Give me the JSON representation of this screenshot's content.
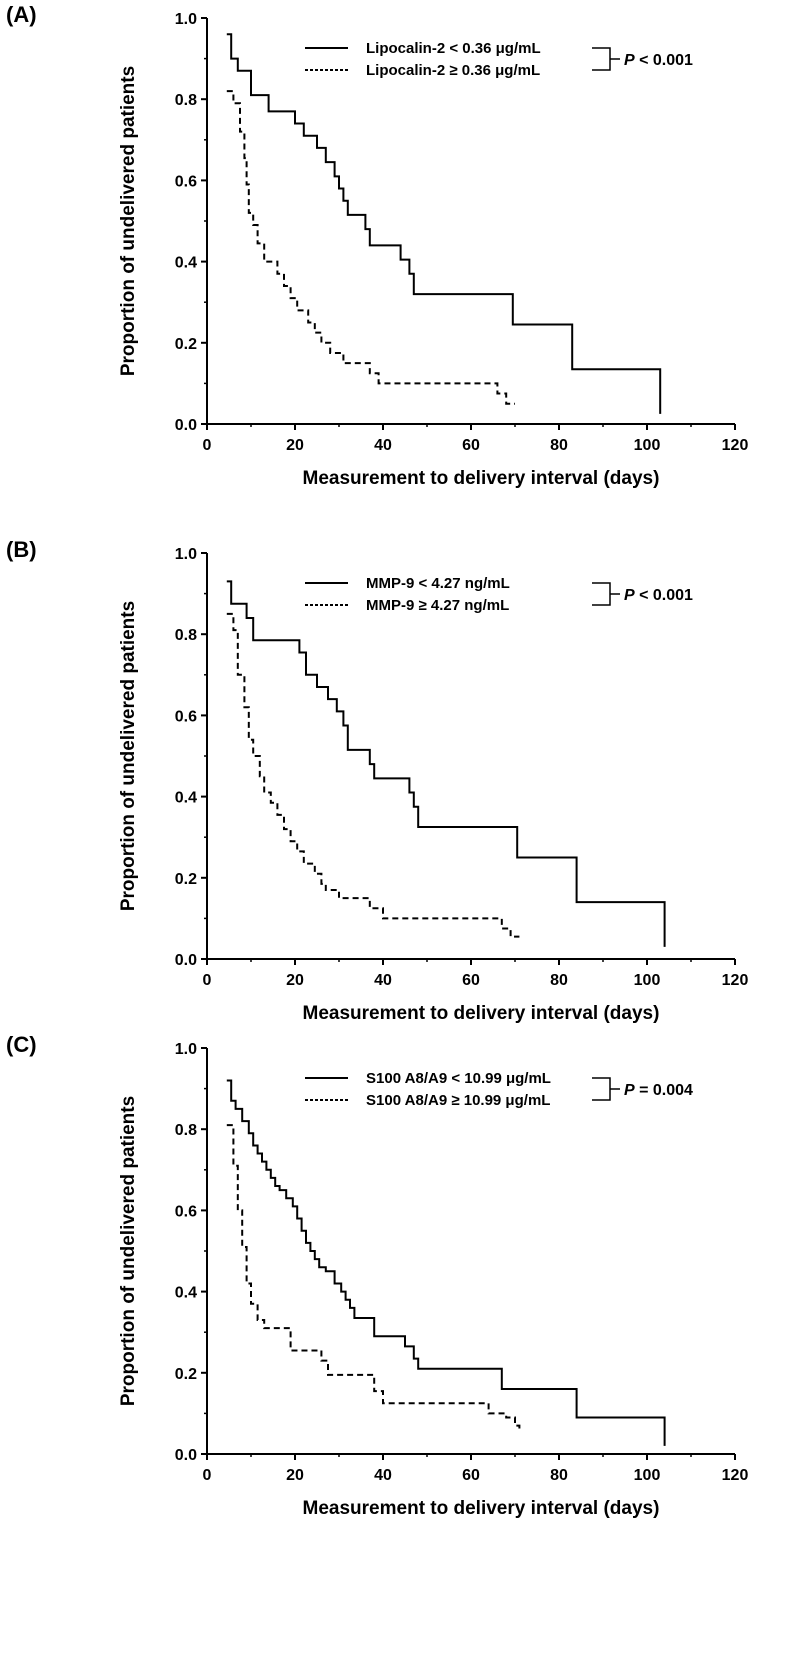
{
  "chart_data": [
    {
      "type": "line",
      "subtype": "kaplan-meier step",
      "panel_label": "(A)",
      "xlabel": "Measurement  to delivery interval (days)",
      "ylabel": "Proportion of undelivered patients",
      "xlim": [
        0,
        120
      ],
      "ylim": [
        0,
        1.0
      ],
      "xticks": [
        "0",
        "20",
        "40",
        "60",
        "80",
        "100",
        "120"
      ],
      "yticks": [
        "0.0",
        "0.2",
        "0.4",
        "0.6",
        "0.8",
        "1.0"
      ],
      "grid": false,
      "legend_position": "top-right",
      "p_label": "P",
      "p_text": " < 0.001",
      "series": [
        {
          "name": "Lipocalin-2 < 0.36 μg/mL",
          "style": "solid",
          "x": [
            4.5,
            5.5,
            7,
            10,
            14,
            20,
            22,
            25,
            27,
            29,
            30,
            31,
            32,
            36,
            37,
            38,
            44,
            46,
            47,
            69.5,
            83,
            103
          ],
          "y": [
            0.96,
            0.9,
            0.87,
            0.81,
            0.77,
            0.74,
            0.71,
            0.68,
            0.645,
            0.61,
            0.58,
            0.55,
            0.515,
            0.48,
            0.44,
            0.44,
            0.405,
            0.37,
            0.32,
            0.245,
            0.135,
            0.025
          ]
        },
        {
          "name": "Lipocalin-2 ≥ 0.36 μg/mL",
          "style": "dashed",
          "x": [
            4.5,
            6,
            7.5,
            8.5,
            9,
            9.5,
            10.5,
            11.5,
            13,
            16,
            17.5,
            19,
            20.5,
            23,
            24.5,
            26,
            28,
            31,
            37,
            39,
            63,
            66,
            68,
            70
          ],
          "y": [
            0.82,
            0.79,
            0.72,
            0.655,
            0.59,
            0.52,
            0.49,
            0.445,
            0.4,
            0.37,
            0.34,
            0.31,
            0.28,
            0.25,
            0.225,
            0.2,
            0.175,
            0.15,
            0.125,
            0.1,
            0.1,
            0.075,
            0.05,
            0.05
          ]
        }
      ]
    },
    {
      "type": "line",
      "subtype": "kaplan-meier step",
      "panel_label": "(B)",
      "xlabel": "Measurement  to delivery interval (days)",
      "ylabel": "Proportion of undelivered patients",
      "xlim": [
        0,
        120
      ],
      "ylim": [
        0,
        1.0
      ],
      "xticks": [
        "0",
        "20",
        "40",
        "60",
        "80",
        "100",
        "120"
      ],
      "yticks": [
        "0.0",
        "0.2",
        "0.4",
        "0.6",
        "0.8",
        "1.0"
      ],
      "grid": false,
      "legend_position": "top-right",
      "p_label": "P",
      "p_text": " < 0.001",
      "series": [
        {
          "name": "MMP-9 < 4.27 ng/mL",
          "style": "solid",
          "x": [
            4.5,
            5.5,
            9,
            10.5,
            21,
            22.5,
            25,
            27.5,
            29.5,
            31,
            32,
            33,
            37,
            38,
            40,
            46,
            47,
            48,
            70.5,
            84,
            104
          ],
          "y": [
            0.93,
            0.875,
            0.84,
            0.785,
            0.755,
            0.7,
            0.67,
            0.64,
            0.61,
            0.575,
            0.515,
            0.515,
            0.48,
            0.445,
            0.445,
            0.41,
            0.375,
            0.325,
            0.25,
            0.14,
            0.03
          ]
        },
        {
          "name": "MMP-9 ≥ 4.27 ng/mL",
          "style": "dashed",
          "x": [
            4.5,
            6,
            7,
            8.5,
            9.5,
            10.5,
            12,
            13,
            14.5,
            16,
            17.5,
            19,
            20.5,
            22,
            24.5,
            26,
            27,
            30,
            37,
            40,
            65,
            67,
            69,
            71
          ],
          "y": [
            0.85,
            0.81,
            0.7,
            0.62,
            0.54,
            0.5,
            0.45,
            0.41,
            0.385,
            0.355,
            0.32,
            0.29,
            0.265,
            0.235,
            0.21,
            0.185,
            0.17,
            0.15,
            0.125,
            0.1,
            0.1,
            0.075,
            0.055,
            0.055
          ]
        }
      ]
    },
    {
      "type": "line",
      "subtype": "kaplan-meier step",
      "panel_label": "(C)",
      "xlabel": "Measurement  to delivery interval (days)",
      "ylabel": "Proportion of undelivered patients",
      "xlim": [
        0,
        120
      ],
      "ylim": [
        0,
        1.0
      ],
      "xticks": [
        "0",
        "20",
        "40",
        "60",
        "80",
        "100",
        "120"
      ],
      "yticks": [
        "0.0",
        "0.2",
        "0.4",
        "0.6",
        "0.8",
        "1.0"
      ],
      "grid": false,
      "legend_position": "top-right",
      "p_label": "P",
      "p_text": " = 0.004",
      "series": [
        {
          "name": "S100 A8/A9 < 10.99 μg/mL",
          "style": "solid",
          "x": [
            4.5,
            5.5,
            6.5,
            8,
            9.5,
            10.5,
            11.5,
            12.5,
            13.5,
            14.5,
            15.5,
            16.5,
            18,
            19.5,
            20.5,
            21.5,
            22.5,
            23.5,
            24.5,
            25.5,
            27,
            29,
            30.5,
            31.5,
            32.5,
            33.5,
            38,
            45,
            47,
            48,
            67,
            84,
            104
          ],
          "y": [
            0.92,
            0.87,
            0.85,
            0.82,
            0.79,
            0.76,
            0.74,
            0.72,
            0.7,
            0.68,
            0.66,
            0.65,
            0.63,
            0.61,
            0.58,
            0.55,
            0.52,
            0.5,
            0.48,
            0.46,
            0.45,
            0.42,
            0.4,
            0.38,
            0.36,
            0.335,
            0.29,
            0.265,
            0.235,
            0.21,
            0.16,
            0.09,
            0.02
          ]
        },
        {
          "name": "S100 A8/A9 ≥ 10.99 μg/mL",
          "style": "dashed",
          "x": [
            4.5,
            6,
            7,
            8,
            9,
            10,
            11.5,
            13,
            19,
            26,
            27.5,
            38,
            40,
            64,
            68,
            70,
            71
          ],
          "y": [
            0.81,
            0.71,
            0.6,
            0.51,
            0.42,
            0.37,
            0.33,
            0.31,
            0.255,
            0.23,
            0.195,
            0.155,
            0.125,
            0.1,
            0.09,
            0.07,
            0.055
          ]
        }
      ]
    }
  ]
}
